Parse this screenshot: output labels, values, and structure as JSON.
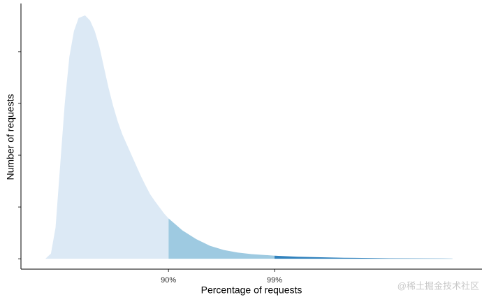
{
  "chart_data": {
    "type": "area",
    "xlabel": "Percentage of requests",
    "ylabel": "Number of requests",
    "xlim": [
      0,
      100
    ],
    "ylim": [
      -0.2,
      4.93
    ],
    "xticks": [
      {
        "value": 32,
        "label": "90%"
      },
      {
        "value": 55,
        "label": "99%"
      }
    ],
    "yticks": [
      0,
      1,
      2,
      3,
      4
    ],
    "series": [
      {
        "color": "#dce9f5",
        "x": [
          5.3,
          6.5,
          7.5,
          8.5,
          9.5,
          10.5,
          11.5,
          12.5,
          13.9,
          15,
          16,
          17,
          18,
          19,
          20,
          21,
          22,
          23,
          24,
          25,
          26,
          27,
          28,
          29,
          30,
          31,
          32
        ],
        "values": [
          0,
          0.1,
          0.6,
          1.8,
          3.0,
          3.9,
          4.4,
          4.65,
          4.7,
          4.6,
          4.4,
          4.1,
          3.7,
          3.3,
          2.95,
          2.65,
          2.4,
          2.2,
          2.0,
          1.8,
          1.6,
          1.42,
          1.25,
          1.12,
          1.0,
          0.88,
          0.78
        ]
      },
      {
        "color": "#9ecae1",
        "x": [
          32,
          35,
          38,
          41,
          44,
          47,
          50,
          55
        ],
        "values": [
          0.78,
          0.55,
          0.38,
          0.25,
          0.17,
          0.12,
          0.09,
          0.06
        ]
      },
      {
        "color": "#3182bd",
        "x": [
          55,
          60,
          65,
          70,
          80,
          93.6
        ],
        "values": [
          0.06,
          0.04,
          0.03,
          0.02,
          0.01,
          0.005
        ]
      }
    ]
  },
  "watermark": "@稀土掘金技术社区"
}
